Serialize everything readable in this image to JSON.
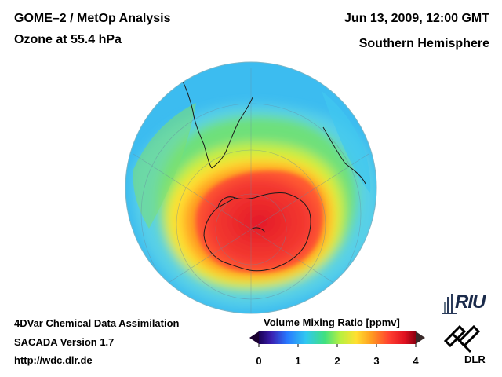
{
  "header": {
    "title_line1": "GOME–2 / MetOp Analysis",
    "title_line2": "Ozone at 55.4 hPa",
    "date": "Jun 13, 2009, 12:00 GMT",
    "region": "Southern Hemisphere"
  },
  "footer": {
    "line1": "4DVar Chemical Data Assimilation",
    "line2": "SACADA Version 1.7",
    "line3": "http://wdc.dlr.de"
  },
  "colorbar": {
    "title": "Volume Mixing Ratio [ppmv]",
    "min": 0,
    "max": 4,
    "ticks": [
      "0",
      "1",
      "2",
      "3",
      "4"
    ],
    "tick_values": [
      0,
      1,
      2,
      3,
      4
    ],
    "colors": [
      "#1a0055",
      "#3a1fb0",
      "#2878ff",
      "#30c8f0",
      "#40e080",
      "#b8f040",
      "#ffe030",
      "#ff9a20",
      "#ff4030",
      "#e01020",
      "#8a0010"
    ]
  },
  "logos": {
    "riu": "RIU",
    "dlr": "DLR"
  },
  "map": {
    "projection": "orthographic south polar",
    "field": "ozone",
    "colors": {
      "background_ocean": "#35b8f5",
      "low": "#30c8f0",
      "mid_green": "#66e070",
      "yellow": "#ffe030",
      "orange": "#ff9a20",
      "red": "#f03030",
      "deep_red": "#d81828"
    }
  }
}
